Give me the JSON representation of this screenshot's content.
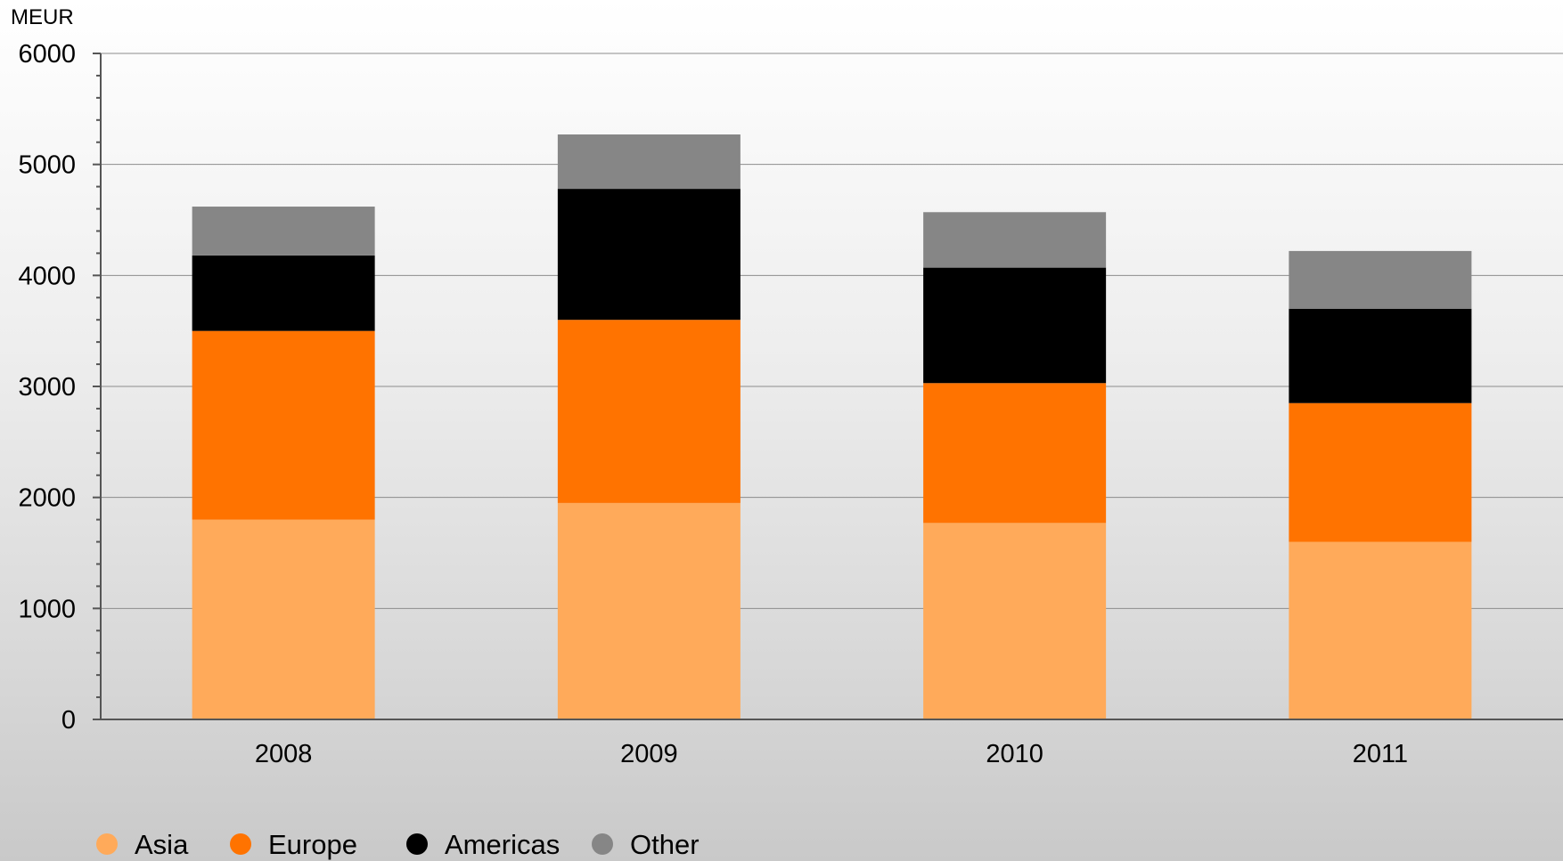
{
  "chart_data": {
    "type": "bar",
    "stacked": true,
    "ylabel": "MEUR",
    "ylim": [
      0,
      6000
    ],
    "yticks": [
      0,
      1000,
      2000,
      3000,
      4000,
      5000,
      6000
    ],
    "categories": [
      "2008",
      "2009",
      "2010",
      "2011"
    ],
    "series": [
      {
        "name": "Asia",
        "color": "#FFAA5A",
        "values": [
          1800,
          1950,
          1770,
          1600
        ]
      },
      {
        "name": "Europe",
        "color": "#FF7300",
        "values": [
          1700,
          1650,
          1260,
          1250
        ]
      },
      {
        "name": "Americas",
        "color": "#000000",
        "values": [
          680,
          1180,
          1040,
          850
        ]
      },
      {
        "name": "Other",
        "color": "#868686",
        "values": [
          440,
          490,
          500,
          520
        ]
      }
    ],
    "grid": true,
    "legend_position": "bottom-left"
  }
}
